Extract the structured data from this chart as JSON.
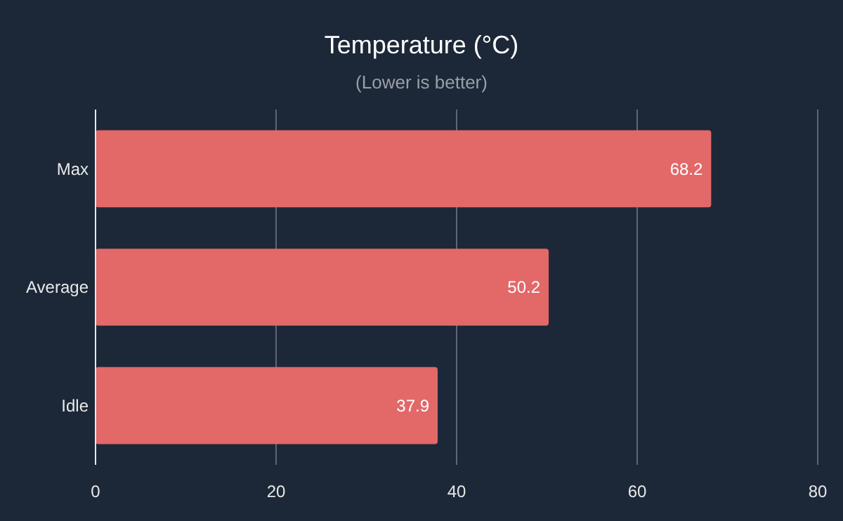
{
  "chart_data": {
    "type": "bar",
    "orientation": "horizontal",
    "title": "Temperature (°C)",
    "subtitle": "(Lower is better)",
    "categories": [
      "Max",
      "Average",
      "Idle"
    ],
    "values": [
      68.2,
      50.2,
      37.9
    ],
    "color": "#e36868",
    "xlim": [
      0,
      80
    ],
    "xticks": [
      0,
      20,
      40,
      60,
      80
    ],
    "grid": "x",
    "data_labels": true
  }
}
